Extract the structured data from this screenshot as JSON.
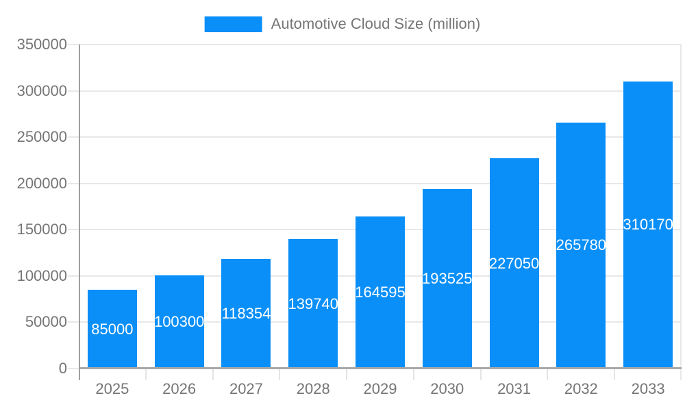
{
  "chart_data": {
    "type": "bar",
    "title": "",
    "legend": {
      "label": "Automotive Cloud Size (million)",
      "position": "top"
    },
    "categories": [
      "2025",
      "2026",
      "2027",
      "2028",
      "2029",
      "2030",
      "2031",
      "2032",
      "2033"
    ],
    "series": [
      {
        "name": "Automotive Cloud Size (million)",
        "values": [
          85000,
          100300,
          118354,
          139740,
          164595,
          193525,
          227050,
          265780,
          310170
        ]
      }
    ],
    "xlabel": "",
    "ylabel": "",
    "ylim": [
      0,
      350000
    ],
    "ytick_step": 50000,
    "ytick_labels": [
      "0",
      "50000",
      "100000",
      "150000",
      "200000",
      "250000",
      "300000",
      "350000"
    ],
    "grid": true,
    "value_labels_shown": true,
    "colors": {
      "bar": "#0a8ff8",
      "axis_text": "#757575",
      "value_label_text": "#ffffff",
      "grid_line": "#e8e8e8",
      "axis_line": "#9e9e9e",
      "background": "#ffffff"
    }
  }
}
